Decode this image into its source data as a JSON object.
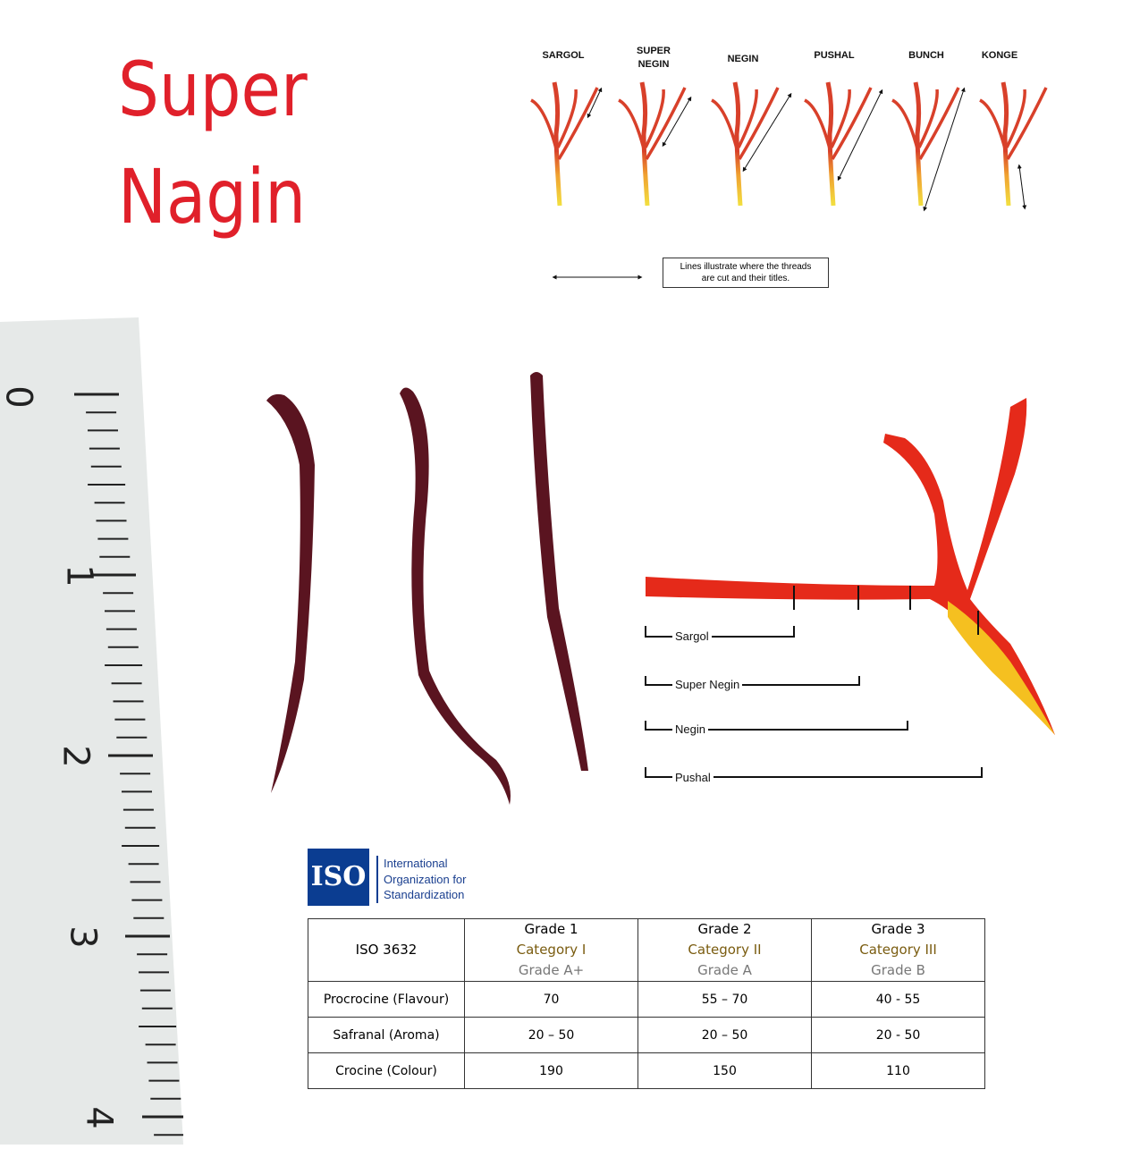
{
  "title": {
    "line1": "Super",
    "line2": "Nagin",
    "color": "#e0202a"
  },
  "grade_diagram": {
    "labels": [
      "SARGOL",
      "SUPER NEGIN",
      "NEGIN",
      "PUSHAL",
      "BUNCH",
      "KONGE"
    ],
    "legend_text_line1": "Lines illustrate where the threads",
    "legend_text_line2": "are cut and their titles."
  },
  "ruler": {
    "numbers": [
      "0",
      "1",
      "2",
      "3",
      "4"
    ]
  },
  "cut_diagram": {
    "labels": [
      "Sargol",
      "Super Negin",
      "Negin",
      "Pushal"
    ]
  },
  "iso": {
    "logo_text": "ISO",
    "name_lines": [
      "International",
      "Organization for",
      "Standardization"
    ],
    "brand_color": "#0b3d91"
  },
  "table": {
    "corner": "ISO 3632",
    "headers": [
      {
        "grade": "Grade 1",
        "category": "Category I",
        "alt": "Grade A+"
      },
      {
        "grade": "Grade 2",
        "category": "Category II",
        "alt": "Grade A"
      },
      {
        "grade": "Grade 3",
        "category": "Category III",
        "alt": "Grade B"
      }
    ],
    "rows": [
      {
        "label": "Procrocine (Flavour)",
        "values": [
          "70",
          "55 – 70",
          "40 - 55"
        ]
      },
      {
        "label": "Safranal (Aroma)",
        "values": [
          "20 – 50",
          "20 – 50",
          "20 - 50"
        ]
      },
      {
        "label": "Crocine (Colour)",
        "values": [
          "190",
          "150",
          "110"
        ]
      }
    ]
  }
}
